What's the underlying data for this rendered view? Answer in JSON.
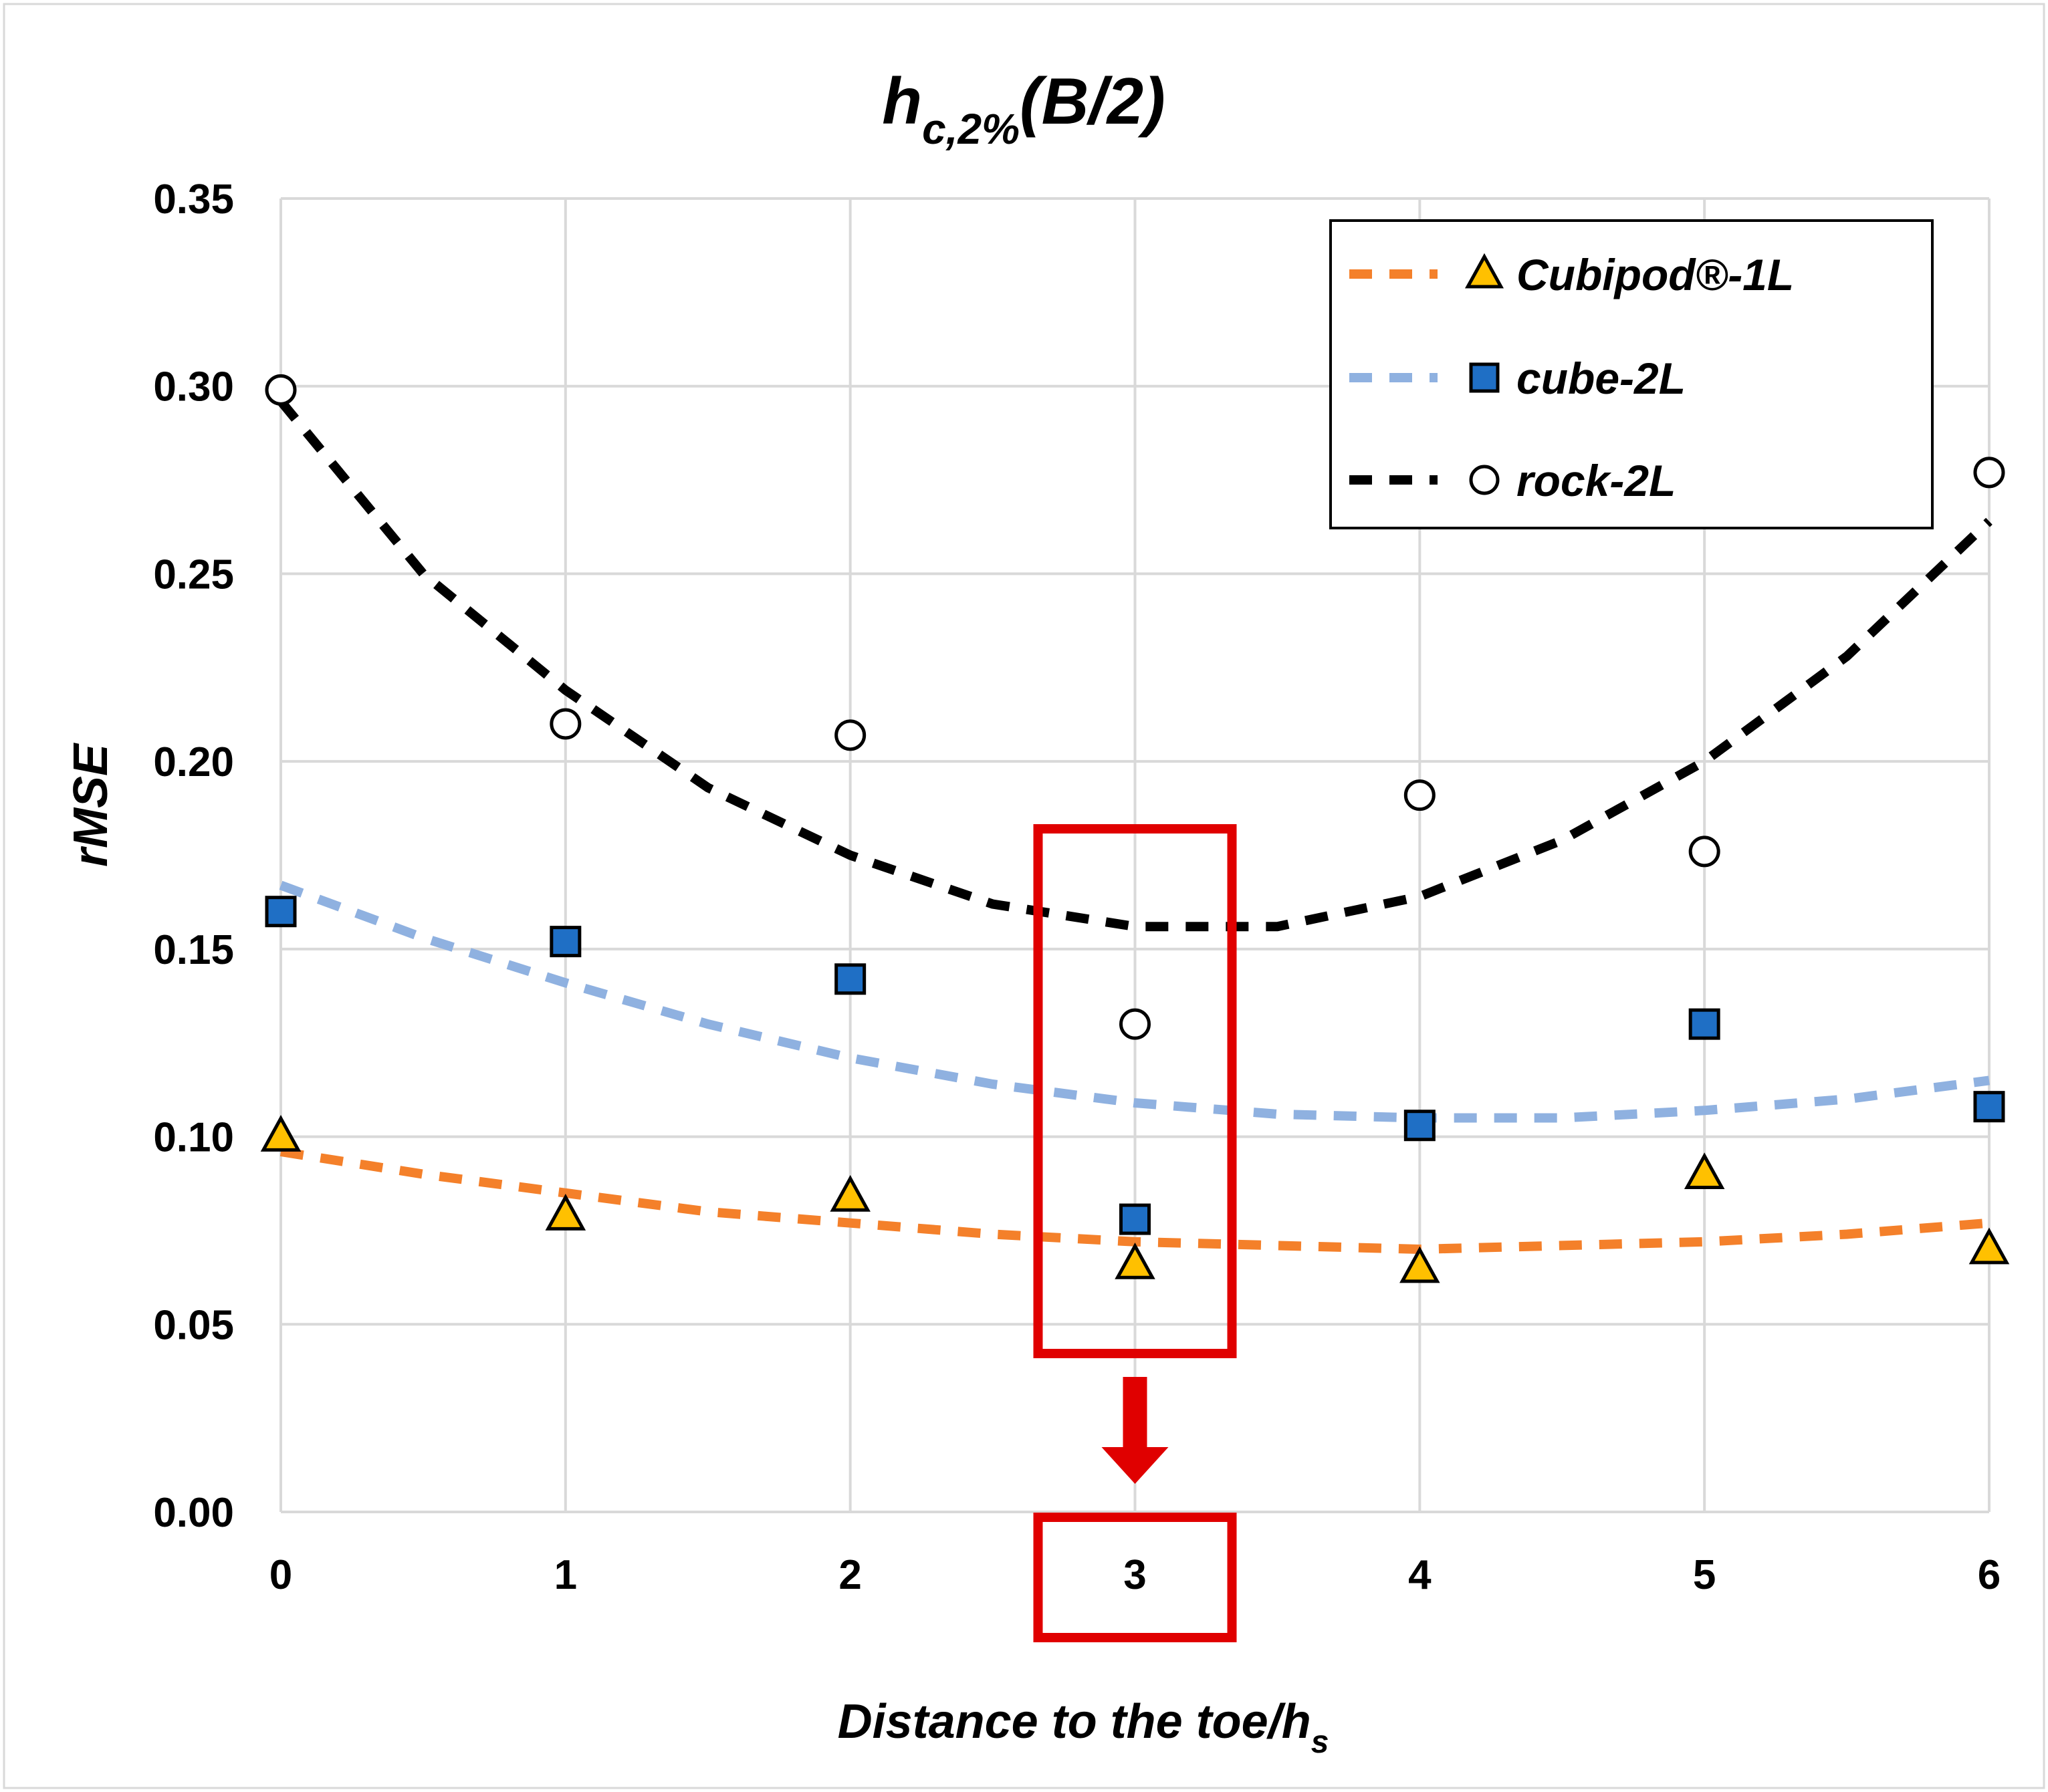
{
  "chart_data": {
    "type": "scatter",
    "title_main": "h",
    "title_sub": "c,2%",
    "title_rest": "(B/2)",
    "xlabel_main": "Distance to the toe/h",
    "xlabel_sub": "s",
    "ylabel": "rMSE",
    "xlim": [
      0,
      6
    ],
    "ylim": [
      0,
      0.35
    ],
    "x_ticks": [
      0,
      1,
      2,
      3,
      4,
      5,
      6
    ],
    "x_tick_labels": [
      "0",
      "1",
      "2",
      "3",
      "4",
      "5",
      "6"
    ],
    "y_ticks": [
      0,
      0.05,
      0.1,
      0.15,
      0.2,
      0.25,
      0.3,
      0.35
    ],
    "y_tick_labels": [
      "0.00",
      "0.05",
      "0.10",
      "0.15",
      "0.20",
      "0.25",
      "0.30",
      "0.35"
    ],
    "grid": true,
    "legend_position": "top-right",
    "series": [
      {
        "name": "Cubipod®-1L",
        "marker": "triangle",
        "marker_color": "#FFC000",
        "trend_color": "#F4802A",
        "x": [
          0,
          1,
          2,
          3,
          4,
          5,
          6
        ],
        "values": [
          0.1,
          0.079,
          0.084,
          0.066,
          0.065,
          0.09,
          0.07
        ],
        "trend_x": [
          0,
          0.5,
          1,
          1.5,
          2,
          2.5,
          3,
          3.5,
          4,
          4.5,
          5,
          5.5,
          6
        ],
        "trend_values": [
          0.096,
          0.09,
          0.085,
          0.08,
          0.077,
          0.074,
          0.072,
          0.071,
          0.07,
          0.071,
          0.072,
          0.074,
          0.077
        ]
      },
      {
        "name": "cube-2L",
        "marker": "square",
        "marker_color": "#1F6FC5",
        "trend_color": "#8FB1E0",
        "x": [
          0,
          1,
          2,
          3,
          4,
          5,
          6
        ],
        "values": [
          0.16,
          0.152,
          0.142,
          0.078,
          0.103,
          0.13,
          0.108
        ],
        "trend_x": [
          0,
          0.5,
          1,
          1.5,
          2,
          2.5,
          3,
          3.5,
          4,
          4.5,
          5,
          5.5,
          6
        ],
        "trend_values": [
          0.167,
          0.153,
          0.141,
          0.13,
          0.121,
          0.114,
          0.109,
          0.106,
          0.105,
          0.105,
          0.107,
          0.11,
          0.115
        ]
      },
      {
        "name": "rock-2L",
        "marker": "circle",
        "marker_color": "#FFFFFF",
        "trend_color": "#000000",
        "x": [
          0,
          1,
          2,
          3,
          4,
          5,
          6
        ],
        "values": [
          0.299,
          0.21,
          0.207,
          0.13,
          0.191,
          0.176,
          0.277
        ],
        "trend_x": [
          0,
          0.5,
          1,
          1.5,
          2,
          2.5,
          3,
          3.5,
          4,
          4.5,
          5,
          5.5,
          6
        ],
        "trend_values": [
          0.296,
          0.25,
          0.219,
          0.193,
          0.175,
          0.162,
          0.156,
          0.156,
          0.164,
          0.179,
          0.2,
          0.228,
          0.264
        ]
      }
    ],
    "highlight": {
      "color": "#E00000",
      "x": 3
    }
  }
}
